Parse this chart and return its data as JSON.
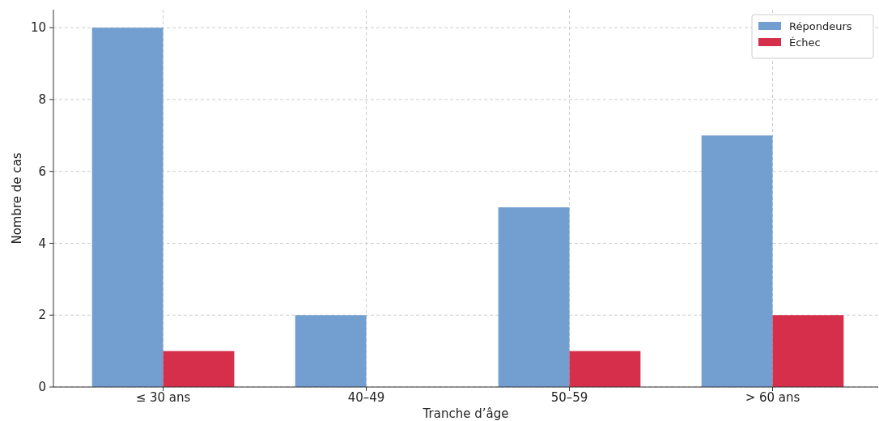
{
  "chart_data": {
    "type": "bar",
    "xlabel": "Tranche d’âge",
    "ylabel": "Nombre de cas",
    "categories": [
      "≤ 30 ans",
      "40–49",
      "50–59",
      "> 60 ans"
    ],
    "series": [
      {
        "name": "Répondeurs",
        "color": "#729fcf",
        "values": [
          10,
          2,
          5,
          7
        ]
      },
      {
        "name": "Échec",
        "color": "#d62f4b",
        "values": [
          1,
          0,
          1,
          2
        ]
      }
    ],
    "ylim": [
      0,
      10.5
    ],
    "yticks": [
      0,
      2,
      4,
      6,
      8,
      10
    ],
    "grid": true,
    "legend": "top right"
  }
}
